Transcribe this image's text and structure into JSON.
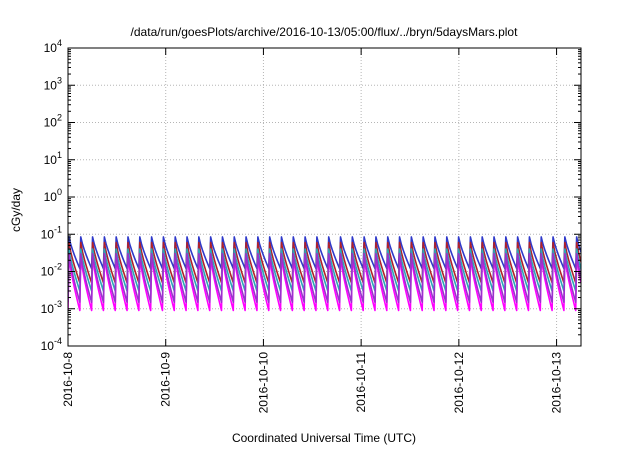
{
  "chart_data": {
    "type": "line",
    "title": "/data/run/goesPlots/archive/2016-10-13/05:00/flux/../bryn/5daysMars.plot",
    "xlabel": "Coordinated Universal Time (UTC)",
    "ylabel": "cGy/day",
    "yscale": "log",
    "ylim": [
      0.0001,
      10000
    ],
    "y_ticks": [
      {
        "value": 0.0001,
        "base": "10",
        "exp": "-4"
      },
      {
        "value": 0.001,
        "base": "10",
        "exp": "-3"
      },
      {
        "value": 0.01,
        "base": "10",
        "exp": "-2"
      },
      {
        "value": 0.1,
        "base": "10",
        "exp": "-1"
      },
      {
        "value": 1,
        "base": "10",
        "exp": "0"
      },
      {
        "value": 10,
        "base": "10",
        "exp": "1"
      },
      {
        "value": 100,
        "base": "10",
        "exp": "2"
      },
      {
        "value": 1000,
        "base": "10",
        "exp": "3"
      },
      {
        "value": 10000,
        "base": "10",
        "exp": "4"
      }
    ],
    "xlim": [
      "2016-10-08T00:00",
      "2016-10-13T06:00"
    ],
    "x_ticks": [
      "2016-10-8",
      "2016-10-9",
      "2016-10-10",
      "2016-10-11",
      "2016-10-12",
      "2016-10-13"
    ],
    "grid": true,
    "legend": "none",
    "cycle_hours": 2.9,
    "series": [
      {
        "color": "#2f39c9",
        "peak": 0.085,
        "trough": 0.012
      },
      {
        "color": "#b0202a",
        "peak": 0.06,
        "trough": 0.005
      },
      {
        "color": "#2aa9b6",
        "peak": 0.04,
        "trough": 0.003
      },
      {
        "color": "#ff00ff",
        "peak": 0.025,
        "trough": 0.0009
      },
      {
        "color": "#9933cc",
        "peak": 0.03,
        "trough": 0.0015
      }
    ]
  }
}
